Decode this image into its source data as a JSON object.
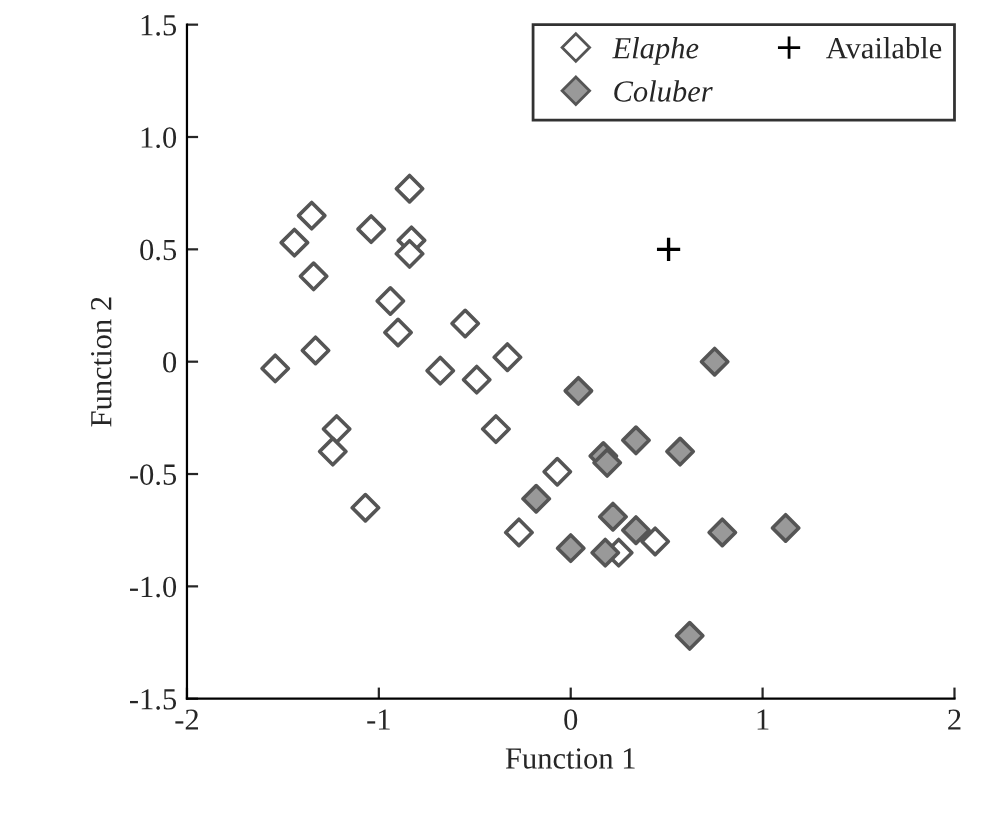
{
  "chart_data": {
    "type": "scatter",
    "xlabel": "Function 1",
    "ylabel": "Function 2",
    "xlim": [
      -2,
      2
    ],
    "xticks": [
      -2,
      -1,
      0,
      1,
      2
    ],
    "ylim": [
      -1.5,
      1.5
    ],
    "yticks": [
      {
        "value": -1.5,
        "label": "-1.5"
      },
      {
        "value": -1.0,
        "label": "-1.0"
      },
      {
        "value": -0.5,
        "label": "-0.5"
      },
      {
        "value": 0,
        "label": "0"
      },
      {
        "value": 0.5,
        "label": "0.5"
      },
      {
        "value": 1.0,
        "label": "1.0"
      },
      {
        "value": 1.5,
        "label": "1.5"
      }
    ],
    "grid": false,
    "legend": "top right",
    "series": [
      {
        "name": "Elaphe",
        "color": "#ffffff",
        "marker": "diamond",
        "x": [
          -0.84,
          -1.35,
          -1.44,
          -1.04,
          -0.83,
          -0.84,
          -1.34,
          -0.94,
          -0.9,
          -0.55,
          -1.54,
          -1.33,
          -0.68,
          -0.49,
          -0.33,
          -1.22,
          -1.24,
          -0.39,
          -1.07,
          -0.07,
          -0.27,
          0.44,
          0.25
        ],
        "values": [
          0.77,
          0.65,
          0.53,
          0.59,
          0.54,
          0.48,
          0.38,
          0.27,
          0.13,
          0.17,
          -0.03,
          0.05,
          -0.04,
          -0.08,
          0.02,
          -0.3,
          -0.4,
          -0.3,
          -0.65,
          -0.49,
          -0.76,
          -0.8,
          -0.85
        ]
      },
      {
        "name": "Coluber",
        "color": "#999999",
        "marker": "diamond",
        "x": [
          0.75,
          0.04,
          0.17,
          0.19,
          0.34,
          0.57,
          -0.18,
          0.22,
          0.34,
          0.0,
          0.18,
          0.79,
          1.12,
          0.62
        ],
        "values": [
          0.0,
          -0.13,
          -0.42,
          -0.45,
          -0.35,
          -0.4,
          -0.61,
          -0.69,
          -0.75,
          -0.83,
          -0.85,
          -0.76,
          -0.74,
          -1.22
        ]
      },
      {
        "name": "Available",
        "color": "#000000",
        "marker": "cross",
        "x": [
          0.51
        ],
        "values": [
          0.5
        ]
      }
    ]
  }
}
